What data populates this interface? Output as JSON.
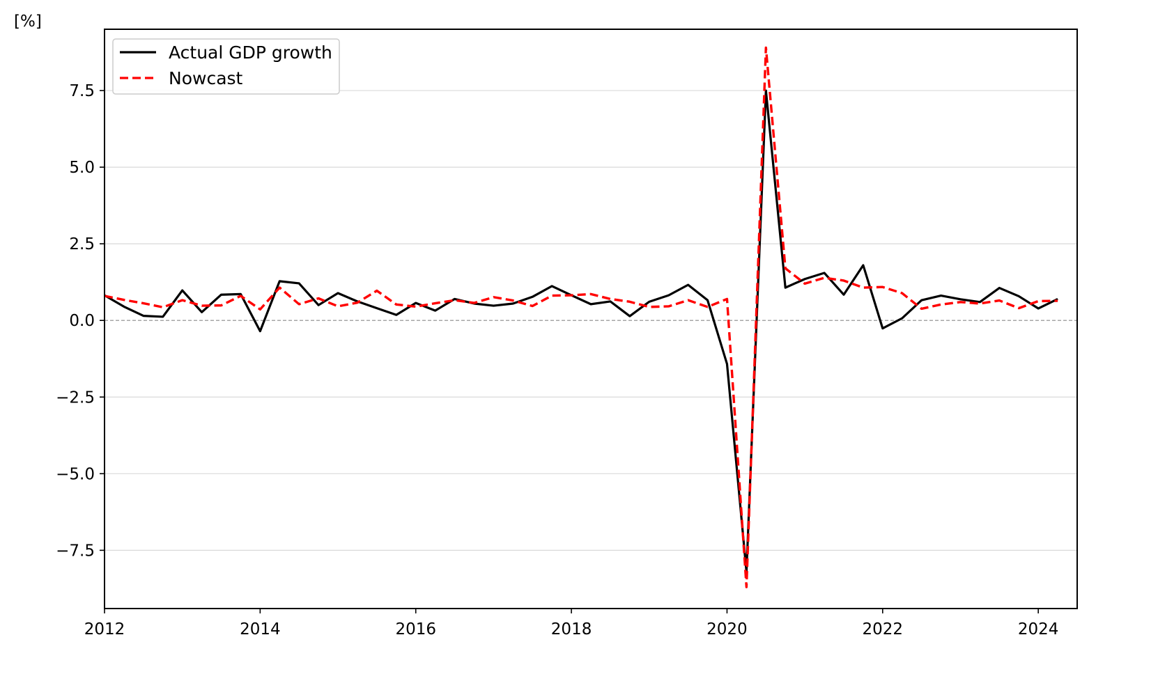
{
  "chart_data": {
    "type": "line",
    "title": "",
    "xlabel": "",
    "ylabel": "[%]",
    "xlim": [
      2012.0,
      2024.5
    ],
    "ylim": [
      -9.4,
      9.5
    ],
    "x_ticks": [
      2012,
      2014,
      2016,
      2018,
      2020,
      2022,
      2024
    ],
    "x_tick_labels": [
      "2012",
      "2014",
      "2016",
      "2018",
      "2020",
      "2022",
      "2024"
    ],
    "y_ticks": [
      7.5,
      5.0,
      2.5,
      0.0,
      -2.5,
      -5.0,
      -7.5
    ],
    "y_tick_labels": [
      "7.5",
      "5.0",
      "2.5",
      "0.0",
      "−2.5",
      "−5.0",
      "−7.5"
    ],
    "grid": "horizontal",
    "zero_line": true,
    "legend_position": "top-left",
    "x": [
      "2012Q1",
      "2012Q2",
      "2012Q3",
      "2012Q4",
      "2013Q1",
      "2013Q2",
      "2013Q3",
      "2013Q4",
      "2014Q1",
      "2014Q2",
      "2014Q3",
      "2014Q4",
      "2015Q1",
      "2015Q2",
      "2015Q3",
      "2015Q4",
      "2016Q1",
      "2016Q2",
      "2016Q3",
      "2016Q4",
      "2017Q1",
      "2017Q2",
      "2017Q3",
      "2017Q4",
      "2018Q1",
      "2018Q2",
      "2018Q3",
      "2018Q4",
      "2019Q1",
      "2019Q2",
      "2019Q3",
      "2019Q4",
      "2020Q1",
      "2020Q2",
      "2020Q3",
      "2020Q4",
      "2021Q1",
      "2021Q2",
      "2021Q3",
      "2021Q4",
      "2022Q1",
      "2022Q2",
      "2022Q3",
      "2022Q4",
      "2023Q1",
      "2023Q2",
      "2023Q3",
      "2023Q4",
      "2024Q1",
      "2024Q2"
    ],
    "series": [
      {
        "name": "Actual GDP growth",
        "color": "#000000",
        "style": "solid",
        "values": [
          0.82,
          0.45,
          0.15,
          0.12,
          0.98,
          0.27,
          0.84,
          0.86,
          -0.35,
          1.28,
          1.21,
          0.5,
          0.89,
          0.62,
          0.4,
          0.18,
          0.57,
          0.32,
          0.7,
          0.55,
          0.48,
          0.55,
          0.77,
          1.12,
          0.82,
          0.53,
          0.62,
          0.14,
          0.61,
          0.82,
          1.16,
          0.66,
          -1.42,
          -8.2,
          7.5,
          1.07,
          1.35,
          1.55,
          0.84,
          1.8,
          -0.26,
          0.07,
          0.66,
          0.81,
          0.69,
          0.6,
          1.06,
          0.79,
          0.39,
          0.7
        ]
      },
      {
        "name": "Nowcast",
        "color": "#ff0000",
        "style": "dashed",
        "values": [
          0.8,
          0.67,
          0.56,
          0.43,
          0.66,
          0.48,
          0.49,
          0.8,
          0.36,
          1.07,
          0.53,
          0.72,
          0.46,
          0.58,
          0.97,
          0.52,
          0.45,
          0.56,
          0.66,
          0.57,
          0.76,
          0.65,
          0.47,
          0.81,
          0.82,
          0.86,
          0.7,
          0.61,
          0.44,
          0.46,
          0.66,
          0.44,
          0.7,
          -8.7,
          8.9,
          1.7,
          1.2,
          1.39,
          1.3,
          1.07,
          1.09,
          0.89,
          0.38,
          0.52,
          0.6,
          0.55,
          0.65,
          0.4,
          0.63,
          0.64
        ]
      }
    ]
  }
}
